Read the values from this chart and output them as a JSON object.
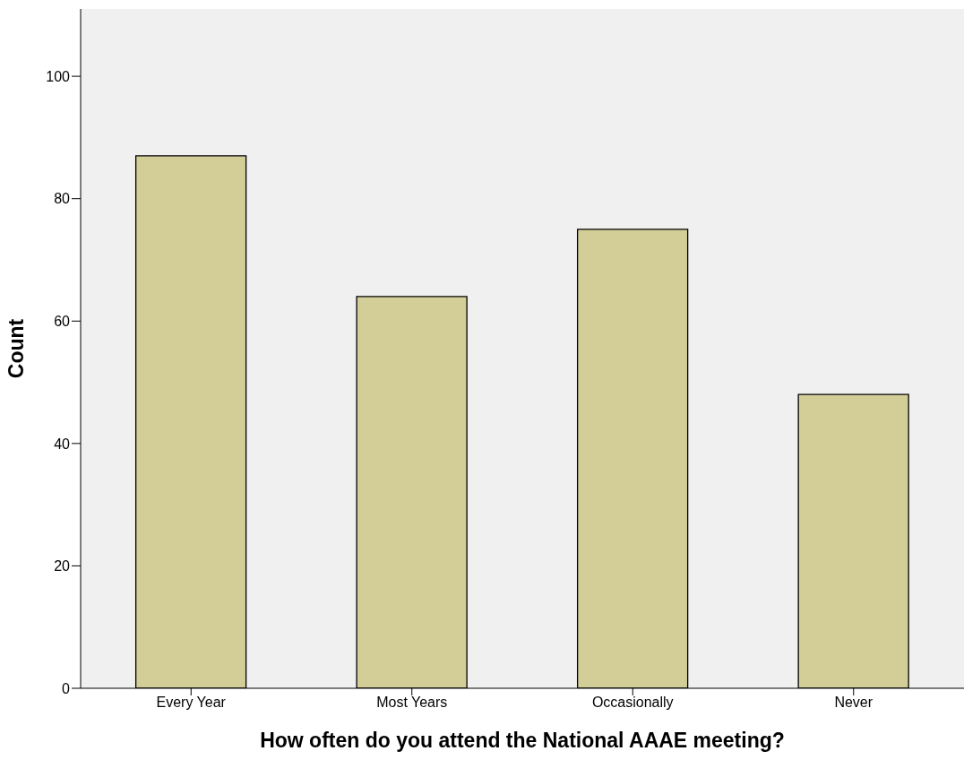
{
  "chart_data": {
    "type": "bar",
    "xlabel": "How often do you attend the National AAAE meeting?",
    "ylabel": "Count",
    "categories": [
      "Every Year",
      "Most Years",
      "Occasionally",
      "Never"
    ],
    "values": [
      87,
      64,
      75,
      48
    ],
    "color": "#d3ce98",
    "ylim": [
      0,
      111
    ],
    "yticks": [
      0,
      20,
      40,
      60,
      80,
      100
    ],
    "grid": false
  }
}
